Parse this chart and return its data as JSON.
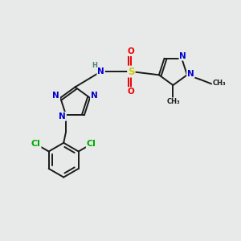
{
  "bg_color": "#e8eaea",
  "atom_colors": {
    "N": "#0000cc",
    "O": "#ee0000",
    "S": "#cccc00",
    "Cl": "#00aa00",
    "H": "#4a8080"
  },
  "bond_color": "#1a1a1a",
  "lw": 1.4,
  "fig_size": [
    3.0,
    3.0
  ],
  "dpi": 100,
  "fs": 7.5
}
